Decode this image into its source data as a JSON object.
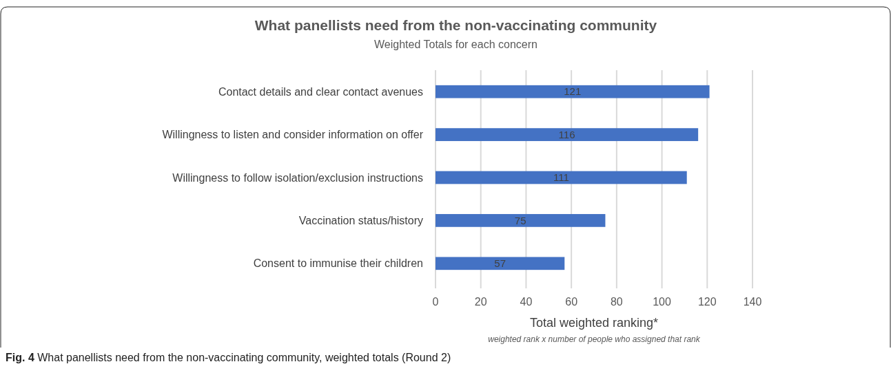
{
  "chart_data": {
    "type": "bar",
    "orientation": "horizontal",
    "title": "What panellists need from the non-vaccinating community",
    "subtitle": "Weighted Totals for each concern",
    "categories": [
      "Contact details and clear contact avenues",
      "Willingness to listen and consider information on offer",
      "Willingness to follow isolation/exclusion instructions",
      "Vaccination status/history",
      "Consent to immunise their children"
    ],
    "values": [
      121,
      116,
      111,
      75,
      57
    ],
    "color": "#4472c4",
    "data_labels": true,
    "xlim": [
      0,
      140
    ],
    "xticks": [
      0,
      20,
      40,
      60,
      80,
      100,
      120,
      140
    ],
    "grid": "x",
    "xlabel": "Total weighted ranking*",
    "annotations": [
      "weighted rank x number of people who assigned that rank",
      "Fig. 4 What panellists need from the non-vaccinating community, weighted totals (Round 2)"
    ]
  }
}
